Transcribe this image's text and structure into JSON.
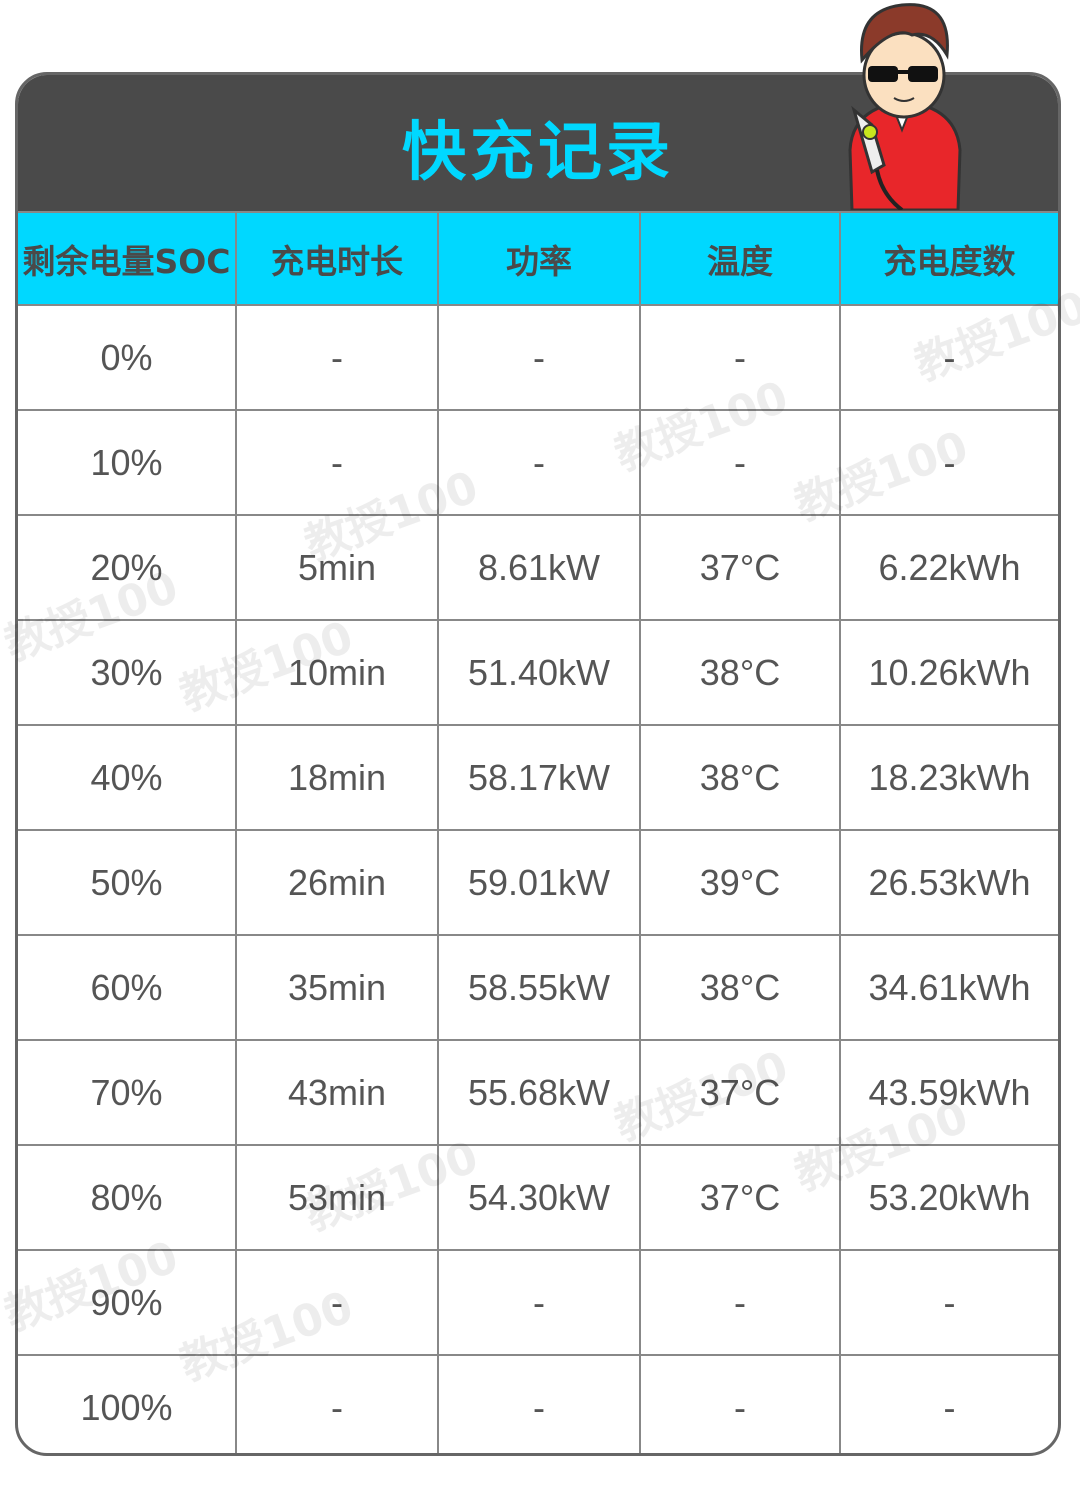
{
  "title": "快充记录",
  "watermark": "教授100",
  "colors": {
    "accent": "#00d8ff",
    "title_band": "#4a4a4a",
    "text": "#555555"
  },
  "columns": [
    "剩余电量SOC",
    "充电时长",
    "功率",
    "温度",
    "充电度数"
  ],
  "rows": [
    [
      "0%",
      "-",
      "-",
      "-",
      "-"
    ],
    [
      "10%",
      "-",
      "-",
      "-",
      "-"
    ],
    [
      "20%",
      "5min",
      "8.61kW",
      "37°C",
      "6.22kWh"
    ],
    [
      "30%",
      "10min",
      "51.40kW",
      "38°C",
      "10.26kWh"
    ],
    [
      "40%",
      "18min",
      "58.17kW",
      "38°C",
      "18.23kWh"
    ],
    [
      "50%",
      "26min",
      "59.01kW",
      "39°C",
      "26.53kWh"
    ],
    [
      "60%",
      "35min",
      "58.55kW",
      "38°C",
      "34.61kWh"
    ],
    [
      "70%",
      "43min",
      "55.68kW",
      "37°C",
      "43.59kWh"
    ],
    [
      "80%",
      "53min",
      "54.30kW",
      "37°C",
      "53.20kWh"
    ],
    [
      "90%",
      "-",
      "-",
      "-",
      "-"
    ],
    [
      "100%",
      "-",
      "-",
      "-",
      "-"
    ]
  ]
}
